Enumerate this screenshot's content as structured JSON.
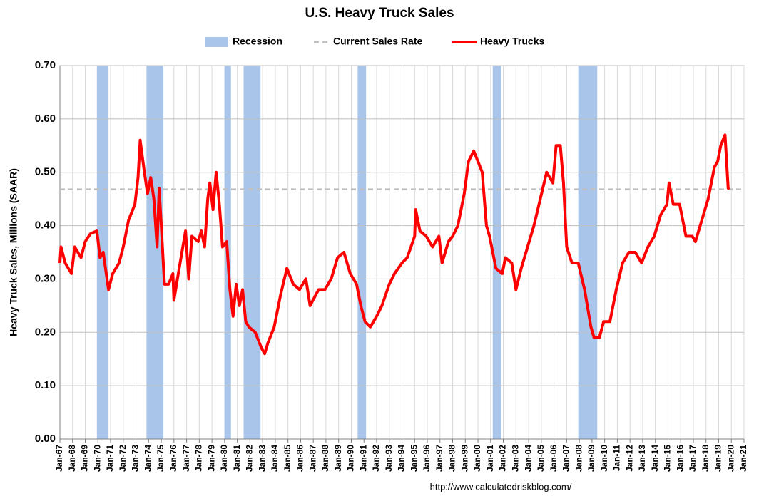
{
  "chart_data": {
    "type": "line",
    "title": "U.S. Heavy Truck Sales",
    "y_label": "Heavy Truck Sales, Millions (SAAR)",
    "source": "http://www.calculatedriskblog.com/",
    "ylim": [
      0,
      0.7
    ],
    "yticks": [
      {
        "value": 0,
        "label": "0.00"
      },
      {
        "value": 0.1,
        "label": "0.10"
      },
      {
        "value": 0.2,
        "label": "0.20"
      },
      {
        "value": 0.3,
        "label": "0.30"
      },
      {
        "value": 0.4,
        "label": "0.40"
      },
      {
        "value": 0.5,
        "label": "0.50"
      },
      {
        "value": 0.6,
        "label": "0.60"
      },
      {
        "value": 0.7,
        "label": "0.70"
      }
    ],
    "xlim": [
      "1967-01",
      "2021-01"
    ],
    "xticks": [
      {
        "value": "1967-01",
        "label": "Jan-67"
      },
      {
        "value": "1968-01",
        "label": "Jan-68"
      },
      {
        "value": "1969-01",
        "label": "Jan-69"
      },
      {
        "value": "1970-01",
        "label": "Jan-70"
      },
      {
        "value": "1971-01",
        "label": "Jan-71"
      },
      {
        "value": "1972-01",
        "label": "Jan-72"
      },
      {
        "value": "1973-01",
        "label": "Jan-73"
      },
      {
        "value": "1974-01",
        "label": "Jan-74"
      },
      {
        "value": "1975-01",
        "label": "Jan-75"
      },
      {
        "value": "1976-01",
        "label": "Jan-76"
      },
      {
        "value": "1977-01",
        "label": "Jan-77"
      },
      {
        "value": "1978-01",
        "label": "Jan-78"
      },
      {
        "value": "1979-01",
        "label": "Jan-79"
      },
      {
        "value": "1980-01",
        "label": "Jan-80"
      },
      {
        "value": "1981-01",
        "label": "Jan-81"
      },
      {
        "value": "1982-01",
        "label": "Jan-82"
      },
      {
        "value": "1983-01",
        "label": "Jan-83"
      },
      {
        "value": "1984-01",
        "label": "Jan-84"
      },
      {
        "value": "1985-01",
        "label": "Jan-85"
      },
      {
        "value": "1986-01",
        "label": "Jan-86"
      },
      {
        "value": "1987-01",
        "label": "Jan-87"
      },
      {
        "value": "1988-01",
        "label": "Jan-88"
      },
      {
        "value": "1989-01",
        "label": "Jan-89"
      },
      {
        "value": "1990-01",
        "label": "Jan-90"
      },
      {
        "value": "1991-01",
        "label": "Jan-91"
      },
      {
        "value": "1992-01",
        "label": "Jan-92"
      },
      {
        "value": "1993-01",
        "label": "Jan-93"
      },
      {
        "value": "1994-01",
        "label": "Jan-94"
      },
      {
        "value": "1995-01",
        "label": "Jan-95"
      },
      {
        "value": "1996-01",
        "label": "Jan-96"
      },
      {
        "value": "1997-01",
        "label": "Jan-97"
      },
      {
        "value": "1998-01",
        "label": "Jan-98"
      },
      {
        "value": "1999-01",
        "label": "Jan-99"
      },
      {
        "value": "2000-01",
        "label": "Jan-00"
      },
      {
        "value": "2001-01",
        "label": "Jan-01"
      },
      {
        "value": "2002-01",
        "label": "Jan-02"
      },
      {
        "value": "2003-01",
        "label": "Jan-03"
      },
      {
        "value": "2004-01",
        "label": "Jan-04"
      },
      {
        "value": "2005-01",
        "label": "Jan-05"
      },
      {
        "value": "2006-01",
        "label": "Jan-06"
      },
      {
        "value": "2007-01",
        "label": "Jan-07"
      },
      {
        "value": "2008-01",
        "label": "Jan-08"
      },
      {
        "value": "2009-01",
        "label": "Jan-09"
      },
      {
        "value": "2010-01",
        "label": "Jan-10"
      },
      {
        "value": "2011-01",
        "label": "Jan-11"
      },
      {
        "value": "2012-01",
        "label": "Jan-12"
      },
      {
        "value": "2013-01",
        "label": "Jan-13"
      },
      {
        "value": "2014-01",
        "label": "Jan-14"
      },
      {
        "value": "2015-01",
        "label": "Jan-15"
      },
      {
        "value": "2016-01",
        "label": "Jan-16"
      },
      {
        "value": "2017-01",
        "label": "Jan-17"
      },
      {
        "value": "2018-01",
        "label": "Jan-18"
      },
      {
        "value": "2019-01",
        "label": "Jan-19"
      },
      {
        "value": "2020-01",
        "label": "Jan-20"
      },
      {
        "value": "2021-01",
        "label": "Jan-21"
      }
    ],
    "grid": true,
    "recession_name": "Recession",
    "recession_color": "#a9c6ea",
    "recessions": [
      {
        "start": "1969-12",
        "end": "1970-11"
      },
      {
        "start": "1973-11",
        "end": "1975-03"
      },
      {
        "start": "1980-01",
        "end": "1980-07"
      },
      {
        "start": "1981-07",
        "end": "1982-11"
      },
      {
        "start": "1990-07",
        "end": "1991-03"
      },
      {
        "start": "2001-03",
        "end": "2001-11"
      },
      {
        "start": "2007-12",
        "end": "2009-06"
      }
    ],
    "reference": {
      "name": "Current Sales Rate",
      "value": 0.468,
      "color": "#bfbfbf"
    },
    "x": [
      "1967-01",
      "1967-02",
      "1967-06",
      "1967-12",
      "1968-03",
      "1968-09",
      "1969-01",
      "1969-06",
      "1969-12",
      "1970-03",
      "1970-06",
      "1970-11",
      "1971-03",
      "1971-09",
      "1972-01",
      "1972-06",
      "1972-12",
      "1973-03",
      "1973-05",
      "1973-09",
      "1973-12",
      "1974-03",
      "1974-06",
      "1974-09",
      "1974-11",
      "1975-01",
      "1975-04",
      "1975-08",
      "1975-12",
      "1976-01",
      "1976-06",
      "1976-12",
      "1977-03",
      "1977-06",
      "1977-12",
      "1978-03",
      "1978-06",
      "1978-09",
      "1978-11",
      "1979-02",
      "1979-05",
      "1979-08",
      "1979-11",
      "1980-03",
      "1980-06",
      "1980-09",
      "1980-12",
      "1981-03",
      "1981-06",
      "1981-09",
      "1981-12",
      "1982-06",
      "1982-10",
      "1982-12",
      "1983-03",
      "1983-06",
      "1983-12",
      "1984-06",
      "1984-12",
      "1985-06",
      "1985-12",
      "1986-06",
      "1986-10",
      "1987-06",
      "1987-12",
      "1988-06",
      "1988-12",
      "1989-06",
      "1989-12",
      "1990-06",
      "1990-10",
      "1991-02",
      "1991-07",
      "1992-01",
      "1992-06",
      "1993-01",
      "1993-06",
      "1994-01",
      "1994-06",
      "1995-01",
      "1995-02",
      "1995-06",
      "1995-12",
      "1996-06",
      "1996-12",
      "1997-03",
      "1997-09",
      "1998-01",
      "1998-06",
      "1998-12",
      "1999-04",
      "1999-09",
      "2000-01",
      "2000-05",
      "2000-09",
      "2000-12",
      "2001-06",
      "2001-12",
      "2002-03",
      "2002-09",
      "2003-01",
      "2003-06",
      "2003-12",
      "2004-06",
      "2004-12",
      "2005-06",
      "2005-12",
      "2006-03",
      "2006-07",
      "2006-10",
      "2007-01",
      "2007-06",
      "2007-12",
      "2008-06",
      "2008-12",
      "2009-03",
      "2009-08",
      "2009-12",
      "2010-06",
      "2010-12",
      "2011-06",
      "2011-12",
      "2012-06",
      "2012-12",
      "2013-06",
      "2013-12",
      "2014-06",
      "2014-12",
      "2015-02",
      "2015-06",
      "2015-12",
      "2016-06",
      "2016-12",
      "2017-03",
      "2017-09",
      "2018-03",
      "2018-09",
      "2018-12",
      "2019-03",
      "2019-07",
      "2019-10",
      "2019-11"
    ],
    "series": [
      {
        "name": "Heavy Trucks",
        "color": "#ff0000",
        "values": [
          0.33,
          0.36,
          0.33,
          0.31,
          0.36,
          0.34,
          0.37,
          0.385,
          0.39,
          0.34,
          0.35,
          0.28,
          0.31,
          0.33,
          0.36,
          0.41,
          0.44,
          0.49,
          0.56,
          0.5,
          0.46,
          0.49,
          0.45,
          0.36,
          0.47,
          0.4,
          0.29,
          0.29,
          0.31,
          0.26,
          0.32,
          0.39,
          0.3,
          0.38,
          0.37,
          0.39,
          0.36,
          0.45,
          0.48,
          0.43,
          0.5,
          0.44,
          0.36,
          0.37,
          0.28,
          0.23,
          0.29,
          0.25,
          0.28,
          0.22,
          0.21,
          0.2,
          0.18,
          0.17,
          0.16,
          0.18,
          0.21,
          0.27,
          0.32,
          0.29,
          0.28,
          0.3,
          0.25,
          0.28,
          0.28,
          0.3,
          0.34,
          0.35,
          0.31,
          0.29,
          0.25,
          0.22,
          0.21,
          0.23,
          0.25,
          0.29,
          0.31,
          0.33,
          0.34,
          0.38,
          0.43,
          0.39,
          0.38,
          0.36,
          0.38,
          0.33,
          0.37,
          0.38,
          0.4,
          0.46,
          0.52,
          0.54,
          0.52,
          0.5,
          0.4,
          0.38,
          0.32,
          0.31,
          0.34,
          0.33,
          0.28,
          0.32,
          0.36,
          0.4,
          0.45,
          0.5,
          0.48,
          0.55,
          0.55,
          0.48,
          0.36,
          0.33,
          0.33,
          0.28,
          0.21,
          0.19,
          0.19,
          0.22,
          0.22,
          0.28,
          0.33,
          0.35,
          0.35,
          0.33,
          0.36,
          0.38,
          0.42,
          0.44,
          0.48,
          0.44,
          0.44,
          0.38,
          0.38,
          0.37,
          0.41,
          0.45,
          0.51,
          0.52,
          0.55,
          0.57,
          0.47,
          0.468
        ]
      }
    ]
  }
}
